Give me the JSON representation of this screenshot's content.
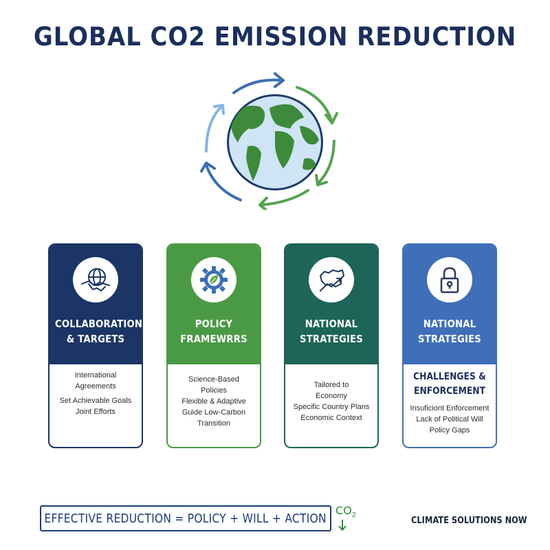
{
  "title": "GLOBAL CO2 EMISSION REDUCTION",
  "colors": {
    "navy": "#1b3566",
    "green": "#4a9a45",
    "teal": "#1c6558",
    "blue": "#3f6fb9"
  },
  "cards": [
    {
      "heading": "COLLABORATION\n& TARGETS",
      "icon": "handshake-globe-icon",
      "lines": [
        "International\nAgreements",
        "Set Achievable Goals\nJoint Efforts"
      ]
    },
    {
      "heading": "POLICY\nFRAMEWRRS",
      "icon": "gear-leaf-icon",
      "lines": [
        "Science-Based\nPolicies\nFlexible & Adaptive\nGuide Low-Carbon\nTransition"
      ]
    },
    {
      "heading": "NATIONAL\nSTRATEGIES",
      "icon": "map-growth-icon",
      "lines": [
        "Tailored to\nEconomy\nSpecific Country Plans\nEconomic Context"
      ]
    },
    {
      "heading": "NATIONAL\nSTRATEGIES",
      "icon": "padlock-icon",
      "subheading": "CHALLENGES &\nENFORCEMENT",
      "lines": [
        "Insuficiont Enforcement\nLack of Political Will\nPolicy Gaps"
      ]
    }
  ],
  "formula": "EFFECTIVE REDUCTION = POLICY + WILL + ACTION",
  "co2_badge": {
    "main": "CO",
    "sub": "2"
  },
  "footer_note": "CLIMATE SOLUTIONS NOW"
}
